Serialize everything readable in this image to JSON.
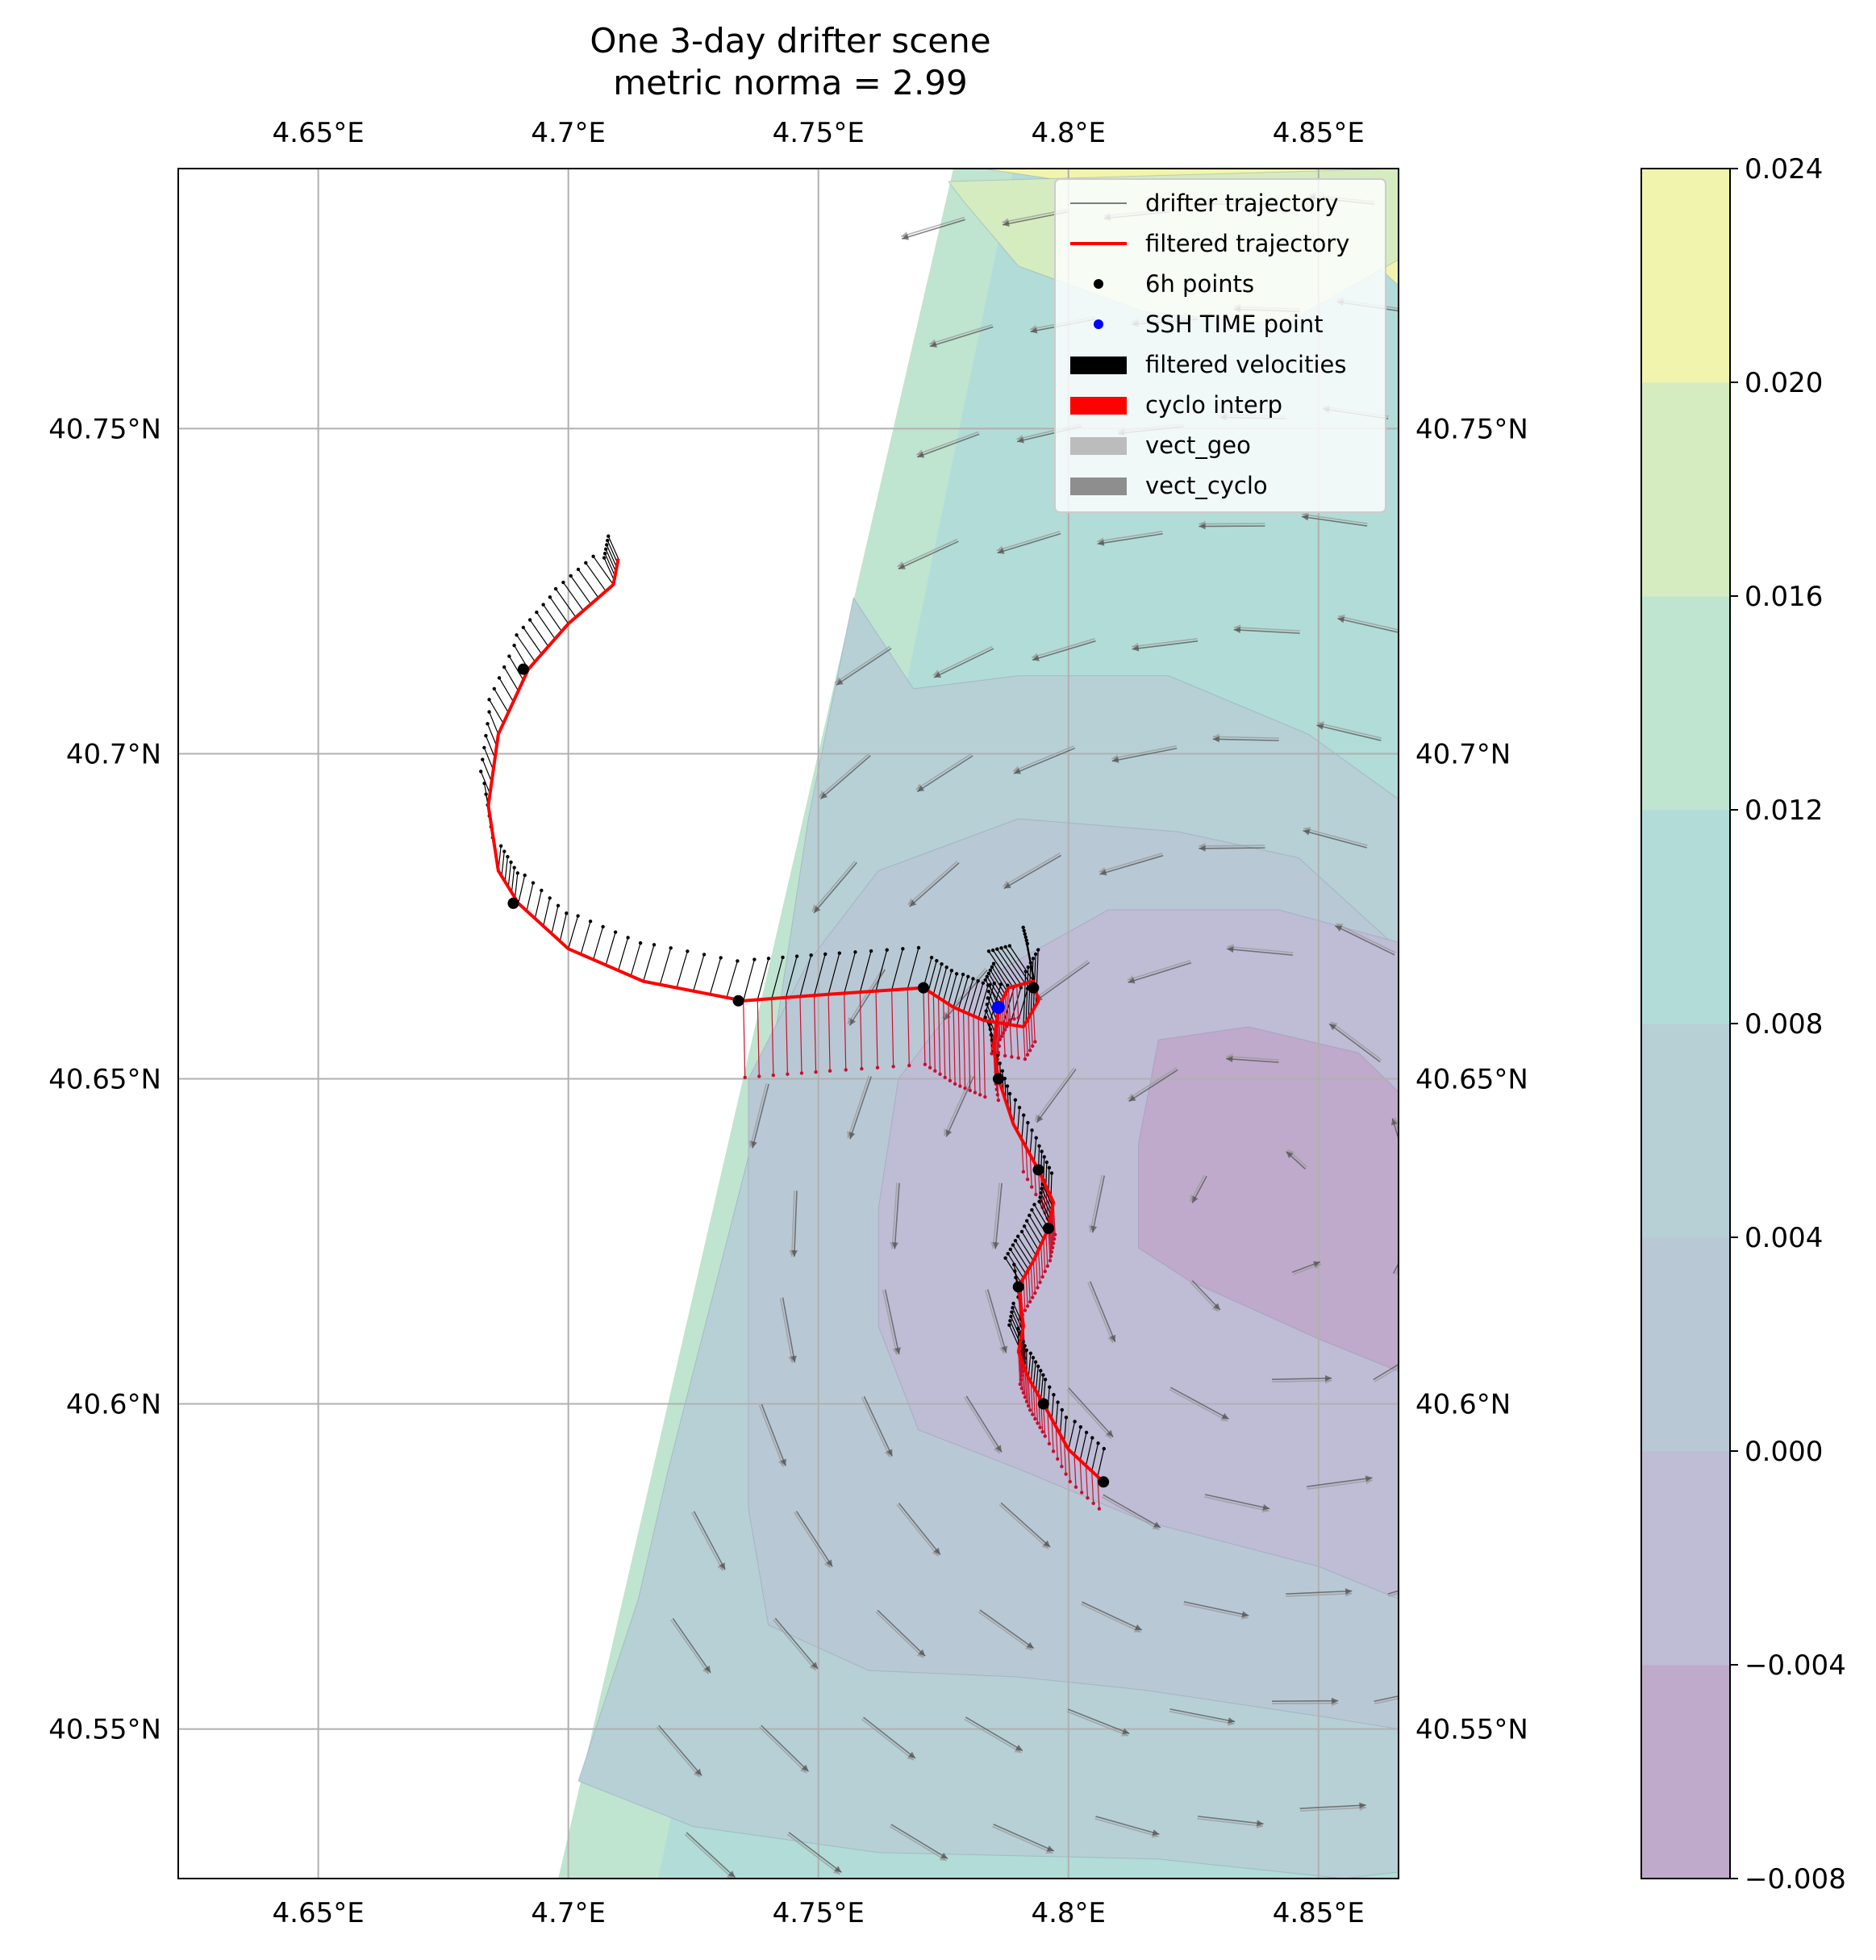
{
  "chart_data": {
    "type": "map",
    "title": "One 3-day drifter scene",
    "subtitle": "metric norma = 2.99",
    "xlim": [
      4.622,
      4.866
    ],
    "ylim": [
      40.527,
      40.79
    ],
    "grid": true,
    "x_ticks": [
      4.65,
      4.7,
      4.75,
      4.8,
      4.85
    ],
    "x_tick_labels": [
      "4.65°E",
      "4.7°E",
      "4.75°E",
      "4.8°E",
      "4.85°E"
    ],
    "y_ticks": [
      40.55,
      40.6,
      40.65,
      40.7,
      40.75
    ],
    "y_tick_labels": [
      "40.55°N",
      "40.6°N",
      "40.65°N",
      "40.7°N",
      "40.75°N"
    ],
    "legend": {
      "placement": "top-right",
      "entries": [
        {
          "label": "drifter trajectory",
          "kind": "line",
          "color": "#555555"
        },
        {
          "label": "filtered trajectory",
          "kind": "line",
          "color": "#ff0000"
        },
        {
          "label": "6h points",
          "kind": "dot",
          "color": "#000000"
        },
        {
          "label": "SSH TIME point",
          "kind": "dot",
          "color": "#0000ff"
        },
        {
          "label": "filtered velocities",
          "kind": "patch",
          "color": "#000000"
        },
        {
          "label": "cyclo interp",
          "kind": "patch",
          "color": "#ff0000"
        },
        {
          "label": "vect_geo",
          "kind": "patch",
          "color": "#bcbcbc"
        },
        {
          "label": "vect_cyclo",
          "kind": "patch",
          "color": "#8e8e8e"
        }
      ]
    },
    "colorbar": {
      "levels": [
        -0.008,
        -0.004,
        0.0,
        0.004,
        0.008,
        0.012,
        0.016,
        0.02,
        0.024
      ],
      "tick_labels": [
        "−0.008",
        "−0.004",
        "0.000",
        "0.004",
        "0.008",
        "0.012",
        "0.016",
        "0.020",
        "0.024"
      ],
      "colors": [
        "#bfaacb",
        "#bfbcd6",
        "#b9c8d5",
        "#b6d0d6",
        "#b2dcd7",
        "#bfe4d0",
        "#d4ecc0",
        "#f1f4ad"
      ]
    },
    "ssh_field": {
      "west_boundary": [
        [
          4.698,
          40.527
        ],
        [
          4.777,
          40.79
        ]
      ],
      "bands": [
        {
          "level_index": 7,
          "polygon": [
            [
              4.783,
              40.79
            ],
            [
              4.866,
              40.79
            ],
            [
              4.866,
              40.772
            ],
            [
              4.852,
              40.782
            ]
          ]
        },
        {
          "level_index": 6,
          "polygon": [
            [
              4.776,
              40.788
            ],
            [
              4.866,
              40.79
            ],
            [
              4.866,
              40.776
            ],
            [
              4.843,
              40.766
            ],
            [
              4.815,
              40.768
            ],
            [
              4.79,
              40.775
            ],
            [
              4.779,
              40.785
            ]
          ]
        },
        {
          "level_index": 3,
          "polygon": [
            [
              4.757,
              40.724
            ],
            [
              4.769,
              40.71
            ],
            [
              4.79,
              40.712
            ],
            [
              4.82,
              40.712
            ],
            [
              4.848,
              40.703
            ],
            [
              4.866,
              40.693
            ],
            [
              4.866,
              40.528
            ],
            [
              4.855,
              40.527
            ],
            [
              4.818,
              40.53
            ],
            [
              4.762,
              40.531
            ],
            [
              4.725,
              40.535
            ],
            [
              4.702,
              40.542
            ],
            [
              4.714,
              40.57
            ],
            [
              4.72,
              40.59
            ],
            [
              4.73,
              40.62
            ],
            [
              4.74,
              40.65
            ],
            [
              4.748,
              40.69
            ]
          ]
        },
        {
          "level_index": 2,
          "polygon": [
            [
              4.736,
              40.65
            ],
            [
              4.748,
              40.668
            ],
            [
              4.762,
              40.682
            ],
            [
              4.79,
              40.69
            ],
            [
              4.822,
              40.688
            ],
            [
              4.846,
              40.684
            ],
            [
              4.866,
              40.67
            ],
            [
              4.866,
              40.55
            ],
            [
              4.85,
              40.552
            ],
            [
              4.815,
              40.556
            ],
            [
              4.79,
              40.558
            ],
            [
              4.76,
              40.559
            ],
            [
              4.74,
              40.566
            ],
            [
              4.736,
              40.584
            ],
            [
              4.736,
              40.604
            ],
            [
              4.736,
              40.63
            ]
          ]
        },
        {
          "level_index": 1,
          "polygon": [
            [
              4.762,
              40.63
            ],
            [
              4.766,
              40.65
            ],
            [
              4.78,
              40.664
            ],
            [
              4.808,
              40.676
            ],
            [
              4.842,
              40.676
            ],
            [
              4.866,
              40.671
            ],
            [
              4.866,
              40.57
            ],
            [
              4.85,
              40.575
            ],
            [
              4.815,
              40.582
            ],
            [
              4.79,
              40.59
            ],
            [
              4.77,
              40.596
            ],
            [
              4.762,
              40.612
            ]
          ]
        },
        {
          "level_index": 0,
          "polygon": [
            [
              4.814,
              40.64
            ],
            [
              4.818,
              40.656
            ],
            [
              4.836,
              40.658
            ],
            [
              4.858,
              40.654
            ],
            [
              4.866,
              40.648
            ],
            [
              4.866,
              40.605
            ],
            [
              4.85,
              40.61
            ],
            [
              4.824,
              40.619
            ],
            [
              4.814,
              40.624
            ]
          ]
        }
      ]
    },
    "drifter_trajectory": [
      [
        4.71,
        40.73
      ],
      [
        4.709,
        40.726
      ],
      [
        4.7,
        40.72
      ],
      [
        4.692,
        40.713
      ],
      [
        4.686,
        40.703
      ],
      [
        4.684,
        40.692
      ],
      [
        4.686,
        40.682
      ],
      [
        4.69,
        40.677
      ],
      [
        4.7,
        40.67
      ],
      [
        4.715,
        40.665
      ],
      [
        4.735,
        40.662
      ],
      [
        4.752,
        40.663
      ],
      [
        4.771,
        40.664
      ],
      [
        4.777,
        40.661
      ],
      [
        4.783,
        40.659
      ],
      [
        4.791,
        40.658
      ],
      [
        4.794,
        40.662
      ],
      [
        4.793,
        40.665
      ],
      [
        4.788,
        40.664
      ],
      [
        4.786,
        40.661
      ],
      [
        4.785,
        40.655
      ],
      [
        4.786,
        40.65
      ],
      [
        4.789,
        40.643
      ],
      [
        4.794,
        40.636
      ],
      [
        4.797,
        40.631
      ],
      [
        4.796,
        40.627
      ],
      [
        4.793,
        40.622
      ],
      [
        4.79,
        40.618
      ],
      [
        4.791,
        40.612
      ],
      [
        4.79,
        40.608
      ],
      [
        4.792,
        40.604
      ],
      [
        4.795,
        40.6
      ],
      [
        4.8,
        40.593
      ],
      [
        4.807,
        40.588
      ]
    ],
    "six_hour_points": [
      [
        4.691,
        40.713
      ],
      [
        4.689,
        40.677
      ],
      [
        4.734,
        40.662
      ],
      [
        4.771,
        40.664
      ],
      [
        4.793,
        40.664
      ],
      [
        4.786,
        40.65
      ],
      [
        4.794,
        40.636
      ],
      [
        4.796,
        40.627
      ],
      [
        4.79,
        40.618
      ],
      [
        4.795,
        40.6
      ],
      [
        4.807,
        40.588
      ]
    ],
    "ssh_time_point": [
      4.786,
      40.661
    ],
    "filtered_velocity_scale_deg": 0.0012,
    "cyclo_interp_range": [
      [
        4.735,
        4.79,
        40.662,
        40.655
      ],
      [
        4.79,
        4.806,
        40.655,
        40.59
      ]
    ],
    "vector_field_direction_hint": "counter-clockwise around low centered near 4.84E 40.63N"
  }
}
